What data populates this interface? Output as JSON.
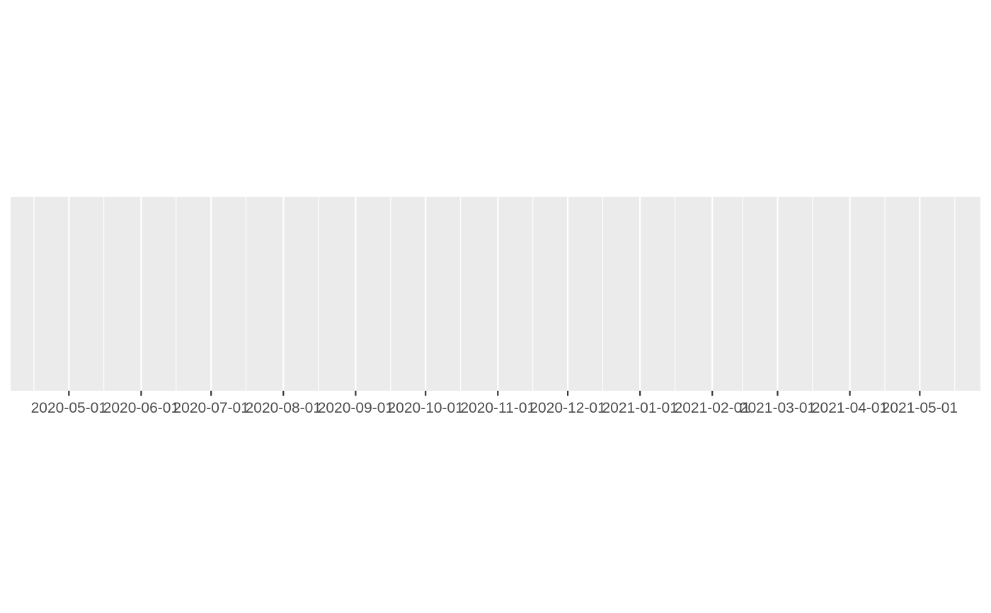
{
  "chart_data": {
    "type": "line",
    "title": "",
    "xlabel": "",
    "ylabel": "",
    "x_axis_type": "date",
    "xlim": [
      "2020-04-06",
      "2021-05-27"
    ],
    "x_ticks": [
      "2020-05-01",
      "2020-06-01",
      "2020-07-01",
      "2020-08-01",
      "2020-09-01",
      "2020-10-01",
      "2020-11-01",
      "2020-12-01",
      "2021-01-01",
      "2021-02-01",
      "2021-03-01",
      "2021-04-01",
      "2021-05-01"
    ],
    "x_minor_ticks": [
      "2020-04-16",
      "2020-05-16",
      "2020-06-16",
      "2020-07-16",
      "2020-08-16",
      "2020-09-16",
      "2020-10-16",
      "2020-11-16",
      "2020-12-16",
      "2021-01-16",
      "2021-02-14",
      "2021-03-16",
      "2021-04-16",
      "2021-05-16"
    ],
    "series": [],
    "grid": true,
    "legend": "none",
    "panel_color": "#ebebeb",
    "grid_color": "#ffffff"
  }
}
